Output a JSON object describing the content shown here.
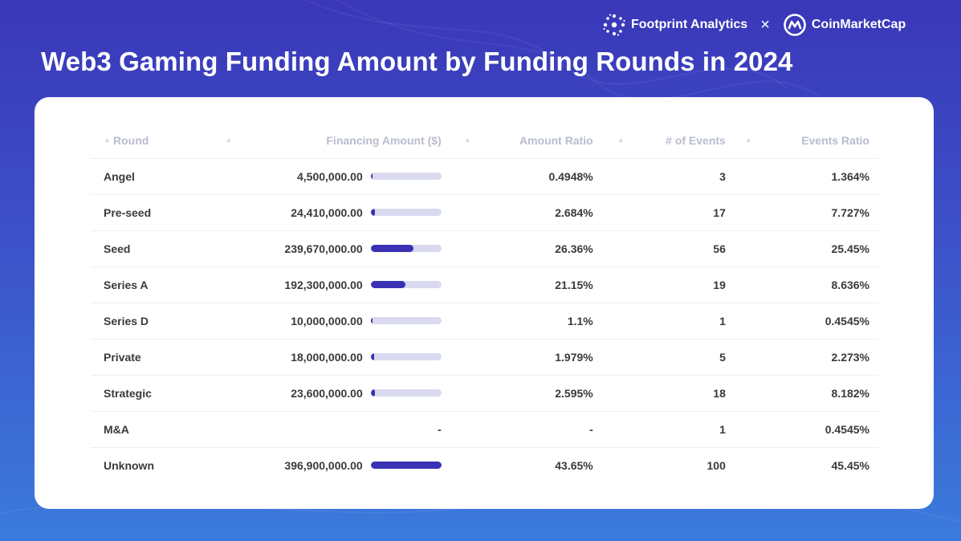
{
  "header": {
    "brand_left": "Footprint Analytics",
    "brand_sep": "×",
    "brand_right": "CoinMarketCap",
    "title": "Web3 Gaming Funding Amount by Funding Rounds in 2024"
  },
  "colors": {
    "accent": "#3a32b4",
    "bar_track": "#d9d9f0",
    "bg_top": "#3a37b8",
    "bg_bottom": "#3b7bdc"
  },
  "chart_data": {
    "type": "table",
    "title": "Web3 Gaming Funding Amount by Funding Rounds in 2024",
    "columns": [
      "Round",
      "Financing Amount ($)",
      "Amount Ratio",
      "# of Events",
      "Events Ratio"
    ],
    "bar_max": 396900000,
    "rows": [
      {
        "round": "Angel",
        "amount": "4,500,000.00",
        "amount_value": 4500000,
        "amount_ratio": "0.4948%",
        "events": "3",
        "events_ratio": "1.364%"
      },
      {
        "round": "Pre-seed",
        "amount": "24,410,000.00",
        "amount_value": 24410000,
        "amount_ratio": "2.684%",
        "events": "17",
        "events_ratio": "7.727%"
      },
      {
        "round": "Seed",
        "amount": "239,670,000.00",
        "amount_value": 239670000,
        "amount_ratio": "26.36%",
        "events": "56",
        "events_ratio": "25.45%"
      },
      {
        "round": "Series A",
        "amount": "192,300,000.00",
        "amount_value": 192300000,
        "amount_ratio": "21.15%",
        "events": "19",
        "events_ratio": "8.636%"
      },
      {
        "round": "Series D",
        "amount": "10,000,000.00",
        "amount_value": 10000000,
        "amount_ratio": "1.1%",
        "events": "1",
        "events_ratio": "0.4545%"
      },
      {
        "round": "Private",
        "amount": "18,000,000.00",
        "amount_value": 18000000,
        "amount_ratio": "1.979%",
        "events": "5",
        "events_ratio": "2.273%"
      },
      {
        "round": "Strategic",
        "amount": "23,600,000.00",
        "amount_value": 23600000,
        "amount_ratio": "2.595%",
        "events": "18",
        "events_ratio": "8.182%"
      },
      {
        "round": "M&A",
        "amount": "-",
        "amount_value": null,
        "amount_ratio": "-",
        "events": "1",
        "events_ratio": "0.4545%"
      },
      {
        "round": "Unknown",
        "amount": "396,900,000.00",
        "amount_value": 396900000,
        "amount_ratio": "43.65%",
        "events": "100",
        "events_ratio": "45.45%"
      }
    ]
  }
}
